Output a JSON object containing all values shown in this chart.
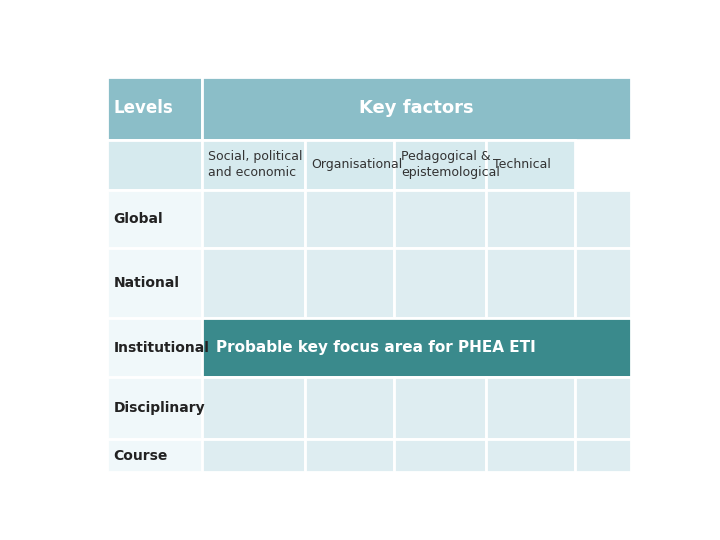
{
  "title": "Key factors",
  "levels_label": "Levels",
  "col_headers": [
    "Social, political\nand economic",
    "Organisational",
    "Pedagogical &\nepistemological",
    "Technical"
  ],
  "row_labels": [
    "Global",
    "National",
    "Institutional",
    "Disciplinary",
    "Course"
  ],
  "highlight_row_idx": 2,
  "highlight_text": "Probable key focus area for PHEA ETI",
  "bg_color": "#ffffff",
  "header_bg": "#8bbec8",
  "header_text_color": "#ffffff",
  "subheader_bg": "#d6eaee",
  "cell_bg_light": "#deedf1",
  "cell_bg_white": "#f0f8fa",
  "highlight_bg": "#3a8a8c",
  "highlight_text_color": "#ffffff",
  "border_color": "#ffffff",
  "levels_header_bg": "#8bbec8",
  "title_fontsize": 13,
  "header_fontsize": 10,
  "cell_fontsize": 9,
  "label_fontsize": 10
}
